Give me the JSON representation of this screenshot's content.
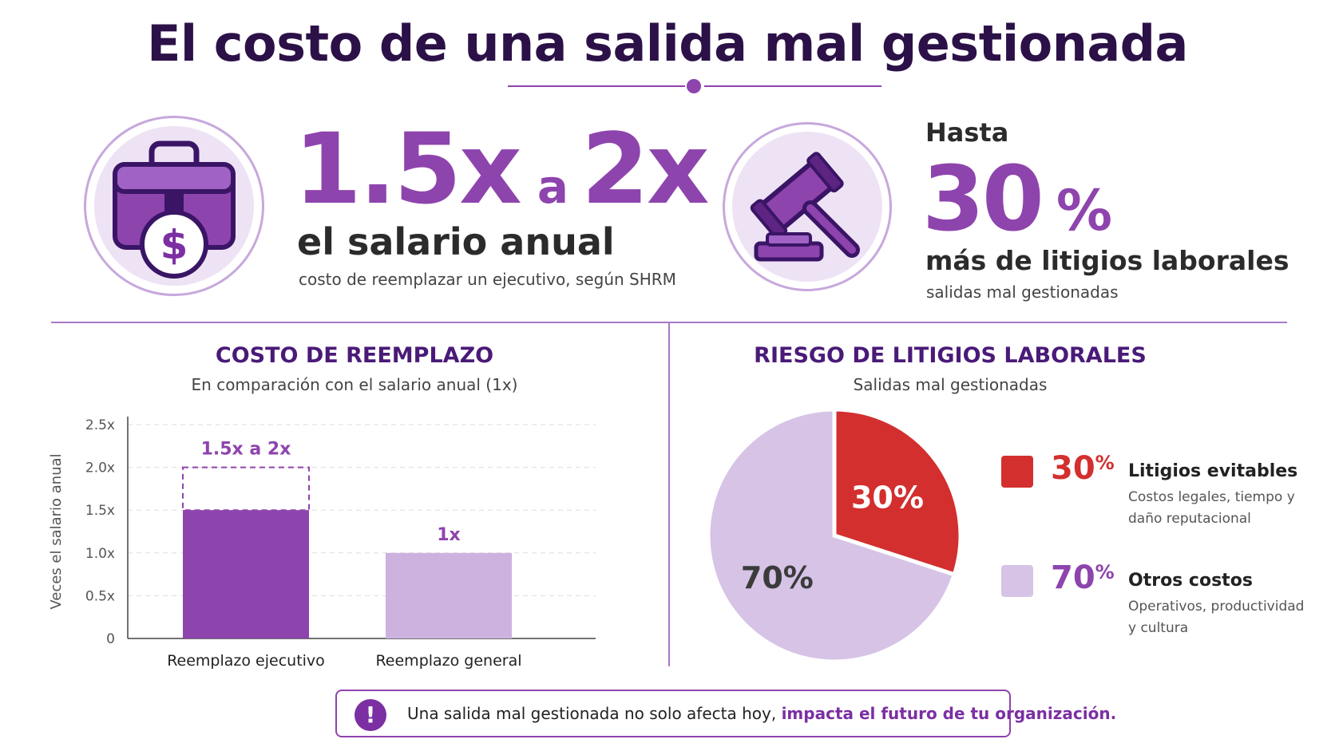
{
  "title": "El costo de una salida mal gestionada",
  "stat_left": {
    "number": "1.5x",
    "connector": "a",
    "number2": "2x",
    "headline": "el salario anual",
    "caption": "costo de reemplazar un ejecutivo, según SHRM",
    "icon": "briefcase-dollar-icon",
    "icon_symbol": "$"
  },
  "stat_right": {
    "prefix": "Hasta",
    "number": "30",
    "unit": "%",
    "headline": "más de litigios laborales",
    "caption": "salidas mal gestionadas",
    "icon": "gavel-icon"
  },
  "colors": {
    "purple": "#8e44ad",
    "light_purple": "#cdb2df",
    "red": "#d32f2f",
    "dark": "#2c1148"
  },
  "chart_data": [
    {
      "type": "bar",
      "title": "COSTO DE REEMPLAZO",
      "subtitle": "En comparación con el salario anual (1x)",
      "ylabel": "Veces el salario anual",
      "xlabel": "",
      "categories": [
        "Reemplazo ejecutivo",
        "Reemplazo general"
      ],
      "values": [
        1.5,
        1.0
      ],
      "range_high": [
        2.0,
        null
      ],
      "data_labels": [
        "1.5x a 2x",
        "1x"
      ],
      "ylim": [
        0,
        2.5
      ],
      "yticks": [
        "0",
        "0.5x",
        "1.0x",
        "1.5x",
        "2.0x",
        "2.5x"
      ],
      "grid": true
    },
    {
      "type": "pie",
      "title": "RIESGO DE LITIGIOS LABORALES",
      "subtitle": "Salidas mal gestionadas",
      "slices": [
        {
          "label": "Litigios evitables",
          "value": 30,
          "display": "30%",
          "desc": "Costos legales, tiempo y daño reputacional",
          "color": "#d32f2f"
        },
        {
          "label": "Otros costos",
          "value": 70,
          "display": "70%",
          "desc": "Operativos, productividad y cultura",
          "color": "#d6c3e6"
        }
      ],
      "legend": "right"
    }
  ],
  "banner": {
    "icon": "exclamation-icon",
    "icon_symbol": "!",
    "text": "Una salida mal gestionada no solo afecta hoy, ",
    "highlight": "impacta el futuro de tu organización."
  }
}
